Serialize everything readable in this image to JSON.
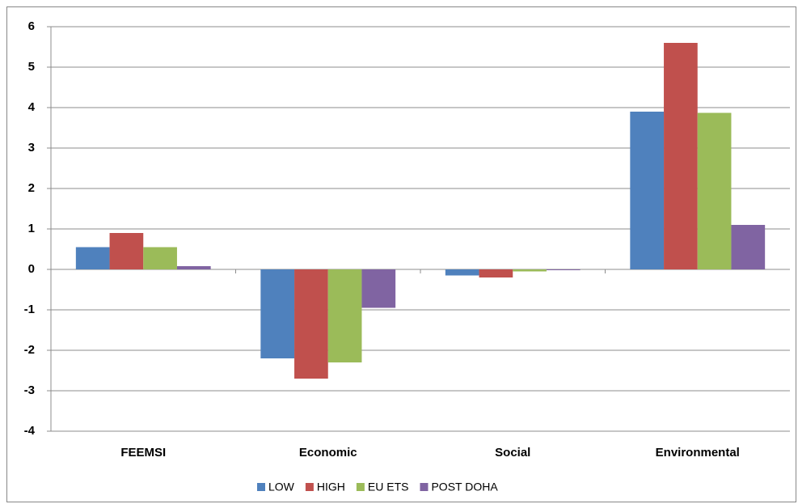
{
  "chart_data": {
    "type": "bar",
    "categories": [
      "FEEMSI",
      "Economic",
      "Social",
      "Environmental"
    ],
    "series": [
      {
        "name": "LOW",
        "color": "#4f81bd",
        "values": [
          0.55,
          -2.2,
          -0.15,
          3.9
        ]
      },
      {
        "name": "HIGH",
        "color": "#c0504d",
        "values": [
          0.9,
          -2.7,
          -0.2,
          5.6
        ]
      },
      {
        "name": "EU ETS",
        "color": "#9bbb59",
        "values": [
          0.55,
          -2.3,
          -0.05,
          3.87
        ]
      },
      {
        "name": "POST DOHA",
        "color": "#8064a2",
        "values": [
          0.08,
          -0.95,
          -0.02,
          1.1
        ]
      }
    ],
    "ylim": [
      -4,
      6
    ],
    "yticks": [
      -4,
      -3,
      -2,
      -1,
      0,
      1,
      2,
      3,
      4,
      5,
      6
    ],
    "grid": true,
    "legend": "bottom"
  }
}
